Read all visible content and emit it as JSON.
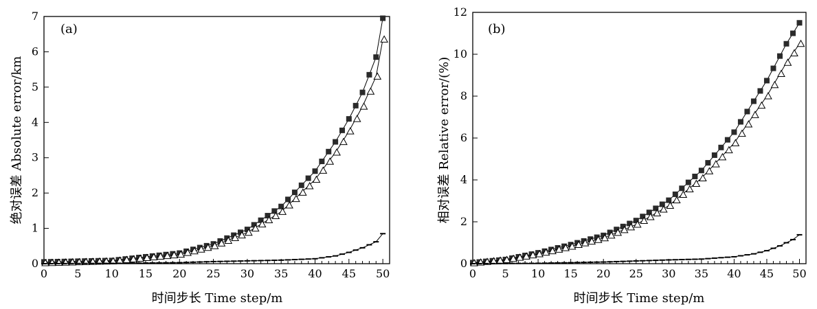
{
  "chart_data": [
    {
      "type": "line",
      "panel_label": "(a)",
      "xlabel": "时间步长 Time step/m",
      "ylabel": "绝对误差 Absolute error/km",
      "xlim": [
        0,
        51
      ],
      "ylim": [
        0,
        7
      ],
      "xticks": [
        "0",
        "5",
        "10",
        "15",
        "20",
        "25",
        "30",
        "35",
        "40",
        "45",
        "50"
      ],
      "yticks": [
        "0",
        "1",
        "2",
        "3",
        "4",
        "5",
        "6",
        "7"
      ],
      "series": [
        {
          "name": "filled-square",
          "marker": "square-filled",
          "x": [
            0,
            10,
            20,
            25,
            30,
            35,
            40,
            43,
            45,
            47,
            48,
            49,
            50
          ],
          "y": [
            0.05,
            0.09,
            0.3,
            0.56,
            0.97,
            1.62,
            2.62,
            3.45,
            4.1,
            4.85,
            5.35,
            5.85,
            6.95
          ]
        },
        {
          "name": "open-triangle",
          "marker": "triangle-open",
          "x": [
            0,
            10,
            20,
            25,
            30,
            35,
            40,
            43,
            45,
            47,
            49,
            50
          ],
          "y": [
            0.02,
            0.07,
            0.26,
            0.5,
            0.88,
            1.47,
            2.38,
            3.15,
            3.75,
            4.45,
            5.3,
            6.35
          ]
        },
        {
          "name": "dash-marker",
          "marker": "dash",
          "x": [
            0,
            10,
            20,
            25,
            30,
            35,
            40,
            43,
            45,
            47,
            49,
            50
          ],
          "y": [
            0.0,
            0.01,
            0.03,
            0.06,
            0.08,
            0.1,
            0.14,
            0.22,
            0.32,
            0.45,
            0.62,
            0.85
          ]
        }
      ]
    },
    {
      "type": "line",
      "panel_label": "(b)",
      "xlabel": "时间步长 Time step/m",
      "ylabel": "相对误差 Relative error/(%)",
      "xlim": [
        0,
        51
      ],
      "ylim": [
        0,
        12
      ],
      "xticks": [
        "0",
        "5",
        "10",
        "15",
        "20",
        "25",
        "30",
        "35",
        "40",
        "45",
        "50"
      ],
      "yticks": [
        "0",
        "2",
        "4",
        "6",
        "8",
        "10",
        "12"
      ],
      "series": [
        {
          "name": "filled-square",
          "marker": "square-filled",
          "x": [
            0,
            5,
            10,
            15,
            20,
            25,
            30,
            35,
            40,
            45,
            48,
            50
          ],
          "y": [
            0.05,
            0.2,
            0.52,
            0.91,
            1.35,
            2.06,
            3.03,
            4.45,
            6.28,
            8.74,
            10.5,
            11.5
          ]
        },
        {
          "name": "open-triangle",
          "marker": "triangle-open",
          "x": [
            0,
            5,
            10,
            15,
            20,
            25,
            30,
            35,
            40,
            45,
            48,
            50
          ],
          "y": [
            0.03,
            0.18,
            0.46,
            0.82,
            1.22,
            1.87,
            2.77,
            4.08,
            5.76,
            8.0,
            9.6,
            10.5
          ]
        },
        {
          "name": "dash-marker",
          "marker": "dash",
          "x": [
            0,
            10,
            20,
            30,
            35,
            40,
            43,
            45,
            47,
            49,
            50
          ],
          "y": [
            0.0,
            0.02,
            0.08,
            0.18,
            0.22,
            0.33,
            0.47,
            0.62,
            0.85,
            1.15,
            1.38
          ]
        }
      ]
    }
  ]
}
